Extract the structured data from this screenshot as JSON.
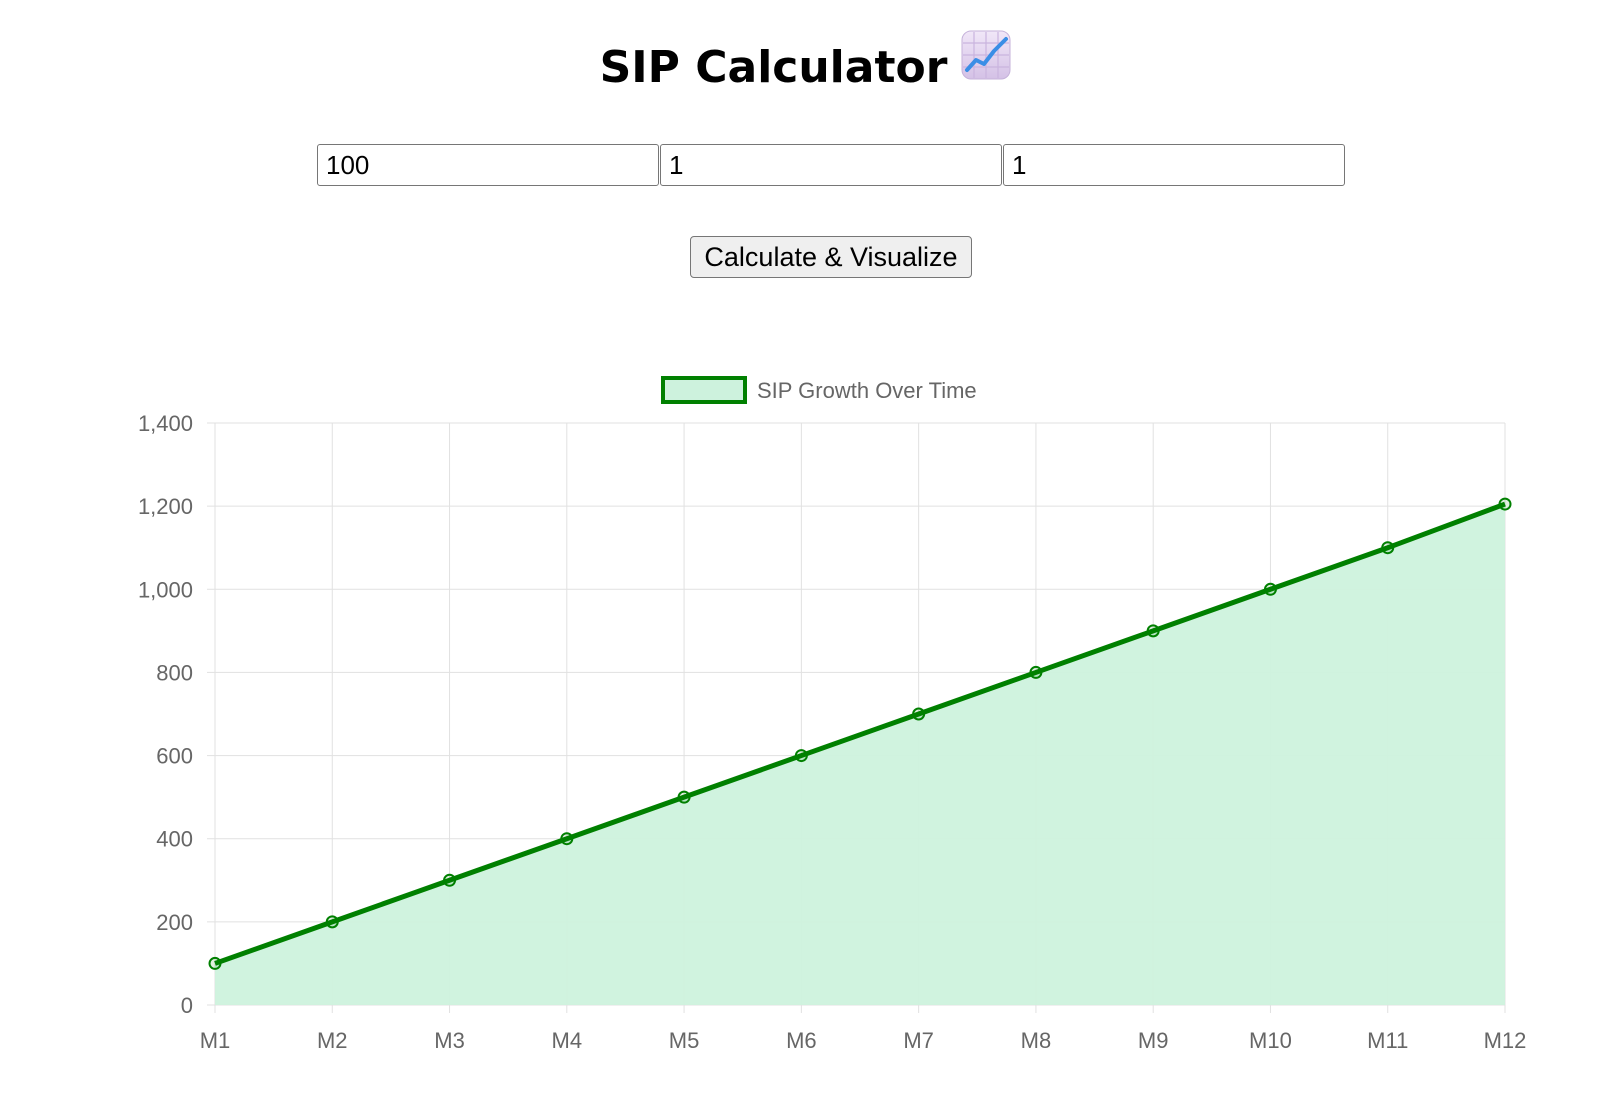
{
  "header": {
    "title": "SIP Calculator",
    "title_icon": "chart-increasing-icon"
  },
  "form": {
    "monthly_investment_value": "100",
    "rate_value": "1",
    "years_value": "1",
    "calculate_label": "Calculate & Visualize"
  },
  "colors": {
    "line": "#008000",
    "fill": "#cdf2dd",
    "grid": "#e1e1e1",
    "tick_text": "#666666",
    "button_bg": "#efefef"
  },
  "chart_data": {
    "type": "area",
    "categories": [
      "M1",
      "M2",
      "M3",
      "M4",
      "M5",
      "M6",
      "M7",
      "M8",
      "M9",
      "M10",
      "M11",
      "M12"
    ],
    "series": [
      {
        "name": "SIP Growth Over Time",
        "values": [
          100,
          200,
          300,
          400,
          500,
          600,
          700,
          800,
          900,
          1000,
          1100,
          1205
        ]
      }
    ],
    "yticks": [
      "0",
      "200",
      "400",
      "600",
      "800",
      "1,000",
      "1,200",
      "1,400"
    ],
    "ylim": [
      0,
      1400
    ],
    "grid": true,
    "legend_position": "top-center",
    "xlabel": "",
    "ylabel": ""
  }
}
